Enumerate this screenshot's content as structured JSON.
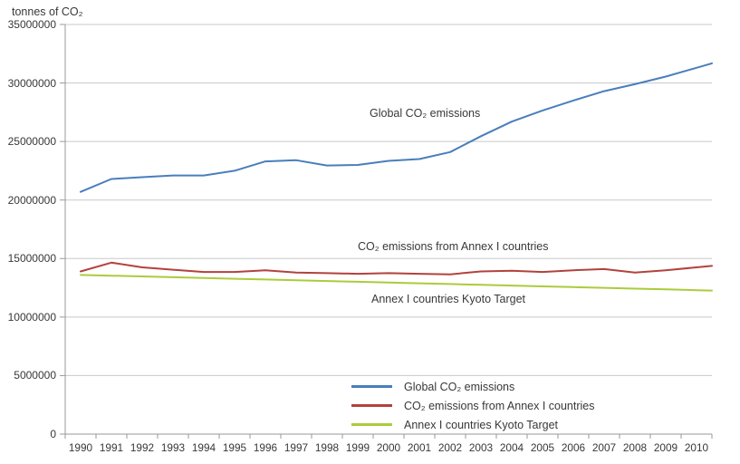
{
  "chart_data": {
    "type": "line",
    "ylabel": "tonnes of CO₂",
    "categories": [
      "1990",
      "1991",
      "1992",
      "1993",
      "1994",
      "1995",
      "1996",
      "1997",
      "1998",
      "1999",
      "2000",
      "2001",
      "2002",
      "2003",
      "2004",
      "2005",
      "2006",
      "2007",
      "2008",
      "2009",
      "2010"
    ],
    "y_axis": {
      "min": 0,
      "max": 35000000,
      "tick_interval": 5000000,
      "tick_labels": [
        "35000000",
        "30000000",
        "25000000",
        "20000000",
        "15000000",
        "10000000",
        "5000000",
        "0"
      ]
    },
    "grid": true,
    "legend_position": "bottom-center-inside",
    "series": [
      {
        "name": "Global CO₂ emissions",
        "color": "#4a7ebb",
        "values": [
          20700000,
          21800000,
          21950000,
          22100000,
          22100000,
          22500000,
          23300000,
          23400000,
          22950000,
          23000000,
          23350000,
          23500000,
          24100000,
          25450000,
          26700000,
          27650000,
          28500000,
          29300000,
          29900000,
          30550000,
          31300000
        ]
      },
      {
        "name": "CO₂ emissions from Annex I countries",
        "color": "#b2423d",
        "values": [
          13900000,
          14650000,
          14250000,
          14050000,
          13850000,
          13850000,
          14000000,
          13800000,
          13750000,
          13700000,
          13750000,
          13700000,
          13650000,
          13900000,
          13950000,
          13850000,
          14000000,
          14100000,
          13800000,
          14000000,
          14250000
        ]
      },
      {
        "name": "Annex I countries Kyoto Target",
        "color": "#accb3c",
        "values": [
          13600000,
          13535000,
          13470000,
          13405000,
          13340000,
          13275000,
          13210000,
          13145000,
          13080000,
          13015000,
          12950000,
          12885000,
          12820000,
          12755000,
          12690000,
          12625000,
          12560000,
          12495000,
          12430000,
          12365000,
          12300000
        ]
      }
    ]
  },
  "colors": {
    "gridline": "#c8c8c8",
    "axis": "#999999",
    "text": "#383838",
    "background": "#ffffff"
  }
}
